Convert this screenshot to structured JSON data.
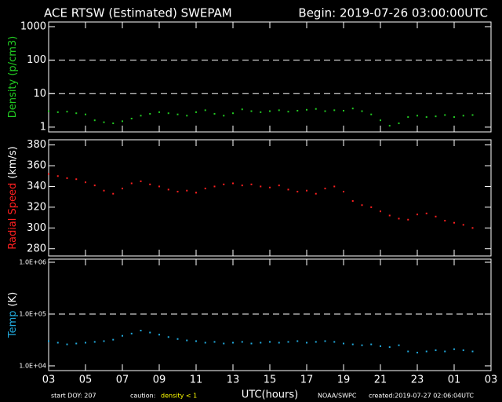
{
  "header": {
    "title": "ACE RTSW (Estimated) SWEPAM",
    "begin": "Begin: 2019-07-26 03:00:00UTC"
  },
  "footer": {
    "start": "start DOY: 207",
    "caution": "caution:",
    "caution_note": "density < 1",
    "caution_color": "#ffff00",
    "credit": "NOAA/SWPC",
    "created": "created:2019-07-27 02:06:04UTC"
  },
  "chart_data": [
    {
      "type": "scatter",
      "log_y": true,
      "ylabel": [
        {
          "text": "Density (p/cm3)",
          "color": "#22cc22"
        }
      ],
      "x": [
        0,
        0.5,
        1,
        1.5,
        2,
        2.5,
        3,
        3.5,
        4,
        4.5,
        5,
        5.5,
        6,
        6.5,
        7,
        7.5,
        8,
        8.5,
        9,
        9.5,
        10,
        10.5,
        11,
        11.5,
        12,
        12.5,
        13,
        13.5,
        14,
        14.5,
        15,
        15.5,
        16,
        16.5,
        17,
        17.5,
        18,
        18.5,
        19,
        19.5,
        20,
        20.5,
        21,
        21.5,
        22,
        22.5,
        23
      ],
      "xlim": [
        0,
        24
      ],
      "xticks": [
        {
          "value": 0,
          "label": "03"
        },
        {
          "value": 2,
          "label": "05"
        },
        {
          "value": 4,
          "label": "07"
        },
        {
          "value": 6,
          "label": "09"
        },
        {
          "value": 8,
          "label": "11"
        },
        {
          "value": 10,
          "label": "13"
        },
        {
          "value": 12,
          "label": "15"
        },
        {
          "value": 14,
          "label": "17"
        },
        {
          "value": 16,
          "label": "19"
        },
        {
          "value": 18,
          "label": "21"
        },
        {
          "value": 20,
          "label": "23"
        },
        {
          "value": 22,
          "label": "01"
        },
        {
          "value": 24,
          "label": "03"
        }
      ],
      "ylim": [
        0.72,
        1380
      ],
      "yticks": [
        1,
        10,
        100,
        1000
      ],
      "dashed_lines": [
        10,
        100
      ],
      "small_ticks": false,
      "series": [
        {
          "color": "#22cc22",
          "values": [
            3,
            2.8,
            2.9,
            2.6,
            2.4,
            1.6,
            1.4,
            1.3,
            1.5,
            1.8,
            2.2,
            2.5,
            2.8,
            2.6,
            2.4,
            2.2,
            2.8,
            3.2,
            2.5,
            2.2,
            2.6,
            3.4,
            3.0,
            2.8,
            3.0,
            3.2,
            2.9,
            3.1,
            3.3,
            3.5,
            3.0,
            3.2,
            3.1,
            3.6,
            3.0,
            2.4,
            1.6,
            1.1,
            1.3,
            2.0,
            2.2,
            2.0,
            2.1,
            2.3,
            2.0,
            2.2,
            2.3
          ]
        }
      ]
    },
    {
      "type": "scatter",
      "log_y": false,
      "ylabel": [
        {
          "text": "Radial Speed",
          "color": "#ff2020"
        },
        {
          "text": "(km/s)",
          "color": "#ffffff"
        }
      ],
      "x": [
        0,
        0.5,
        1,
        1.5,
        2,
        2.5,
        3,
        3.5,
        4,
        4.5,
        5,
        5.5,
        6,
        6.5,
        7,
        7.5,
        8,
        8.5,
        9,
        9.5,
        10,
        10.5,
        11,
        11.5,
        12,
        12.5,
        13,
        13.5,
        14,
        14.5,
        15,
        15.5,
        16,
        16.5,
        17,
        17.5,
        18,
        18.5,
        19,
        19.5,
        20,
        20.5,
        21,
        21.5,
        22,
        22.5,
        23
      ],
      "xlim": [
        0,
        24
      ],
      "xticks": [
        {
          "value": 0,
          "label": "03"
        },
        {
          "value": 2,
          "label": "05"
        },
        {
          "value": 4,
          "label": "07"
        },
        {
          "value": 6,
          "label": "09"
        },
        {
          "value": 8,
          "label": "11"
        },
        {
          "value": 10,
          "label": "13"
        },
        {
          "value": 12,
          "label": "15"
        },
        {
          "value": 14,
          "label": "17"
        },
        {
          "value": 16,
          "label": "19"
        },
        {
          "value": 18,
          "label": "21"
        },
        {
          "value": 20,
          "label": "23"
        },
        {
          "value": 22,
          "label": "01"
        },
        {
          "value": 24,
          "label": "03"
        }
      ],
      "ylim": [
        273,
        385
      ],
      "yticks": [
        280,
        300,
        320,
        340,
        360,
        380
      ],
      "dashed_lines": [],
      "small_ticks": false,
      "series": [
        {
          "color": "#ff2020",
          "values": [
            352,
            350,
            348,
            347,
            344,
            341,
            336,
            333,
            338,
            343,
            345,
            342,
            340,
            337,
            335,
            336,
            334,
            338,
            340,
            342,
            343,
            341,
            342,
            340,
            339,
            341,
            337,
            335,
            336,
            333,
            338,
            340,
            335,
            326,
            322,
            320,
            316,
            312,
            309,
            308,
            313,
            314,
            311,
            307,
            305,
            303,
            300
          ]
        }
      ]
    },
    {
      "type": "scatter",
      "log_y": true,
      "ylabel": [
        {
          "text": "Temp",
          "color": "#22aadd"
        },
        {
          "text": "(K)",
          "color": "#ffffff"
        }
      ],
      "x": [
        0,
        0.5,
        1,
        1.5,
        2,
        2.5,
        3,
        3.5,
        4,
        4.5,
        5,
        5.5,
        6,
        6.5,
        7,
        7.5,
        8,
        8.5,
        9,
        9.5,
        10,
        10.5,
        11,
        11.5,
        12,
        12.5,
        13,
        13.5,
        14,
        14.5,
        15,
        15.5,
        16,
        16.5,
        17,
        17.5,
        18,
        18.5,
        19,
        19.5,
        20,
        20.5,
        21,
        21.5,
        22,
        22.5,
        23
      ],
      "xlim": [
        0,
        24
      ],
      "xticks": [
        {
          "value": 0,
          "label": "03"
        },
        {
          "value": 2,
          "label": "05"
        },
        {
          "value": 4,
          "label": "07"
        },
        {
          "value": 6,
          "label": "09"
        },
        {
          "value": 8,
          "label": "11"
        },
        {
          "value": 10,
          "label": "13"
        },
        {
          "value": 12,
          "label": "15"
        },
        {
          "value": 14,
          "label": "17"
        },
        {
          "value": 16,
          "label": "19"
        },
        {
          "value": 18,
          "label": "21"
        },
        {
          "value": 20,
          "label": "23"
        },
        {
          "value": 22,
          "label": "01"
        },
        {
          "value": 24,
          "label": "03"
        }
      ],
      "xlabel": "UTC(hours)",
      "ylim": [
        8100,
        1150000
      ],
      "yticks": [
        {
          "value": 10000,
          "label": "1.0E+04"
        },
        {
          "value": 100000,
          "label": "1.0E+05"
        },
        {
          "value": 1000000,
          "label": "1.0E+06"
        }
      ],
      "dashed_lines": [
        100000
      ],
      "small_ticks": true,
      "series": [
        {
          "color": "#22aadd",
          "values": [
            30000,
            28000,
            26000,
            27000,
            28000,
            29000,
            30000,
            32000,
            38000,
            42000,
            48000,
            44000,
            40000,
            36000,
            33000,
            31000,
            30000,
            28000,
            29000,
            27000,
            28000,
            29000,
            27000,
            28000,
            29000,
            28000,
            29000,
            30000,
            28000,
            29000,
            30000,
            29000,
            27000,
            26000,
            25000,
            26000,
            24000,
            23000,
            25000,
            19000,
            18000,
            19000,
            20000,
            19000,
            21000,
            20000,
            19000
          ]
        }
      ]
    }
  ]
}
